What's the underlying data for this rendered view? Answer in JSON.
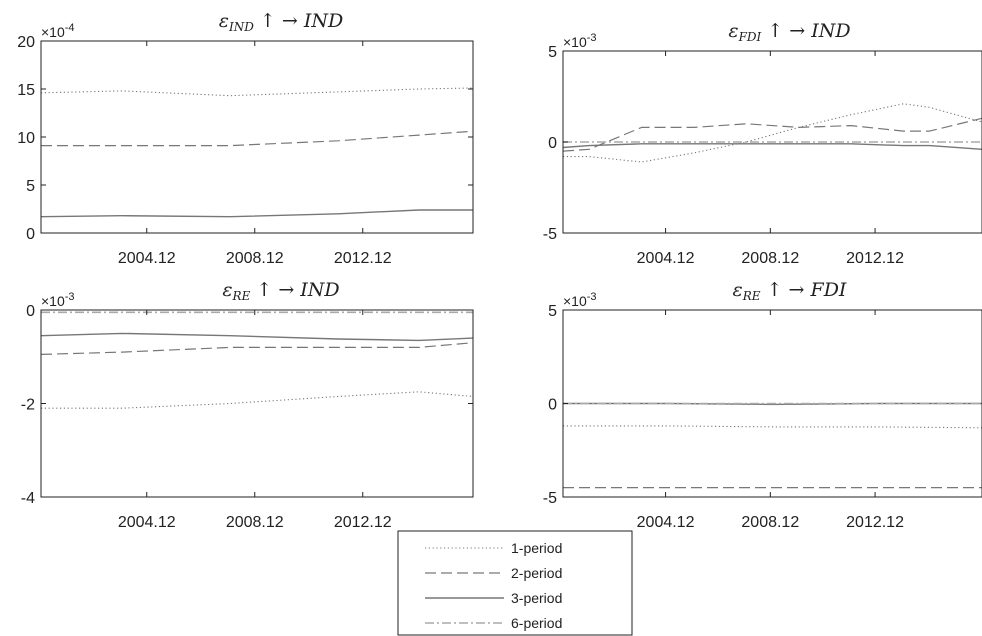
{
  "chart_data": [
    {
      "type": "line",
      "title": "ε_IND ↑ → IND",
      "title_main": "ε",
      "title_sub": "IND",
      "title_rest": " ↑ →  IND",
      "multiplier_base": "×10",
      "multiplier_exp": "-4",
      "ylim": [
        0,
        20
      ],
      "yticks": [
        "0",
        "5",
        "10",
        "15",
        "20"
      ],
      "xlim": [
        2001,
        2017
      ],
      "xticks": [
        2004.917,
        2008.917,
        2012.917
      ],
      "xtick_labels": [
        "2004.12",
        "2008.12",
        "2012.12"
      ],
      "x": [
        2001,
        2004,
        2008,
        2012,
        2015,
        2017
      ],
      "series": [
        {
          "name": "1-period",
          "style": "dotted",
          "values": [
            14.6,
            14.8,
            14.3,
            14.7,
            15.0,
            15.1
          ]
        },
        {
          "name": "2-period",
          "style": "dashed",
          "values": [
            9.1,
            9.1,
            9.1,
            9.6,
            10.2,
            10.6
          ]
        },
        {
          "name": "3-period",
          "style": "solid",
          "values": [
            1.7,
            1.8,
            1.7,
            2.0,
            2.4,
            2.4
          ]
        }
      ]
    },
    {
      "type": "line",
      "title": "ε_FDI ↑ → IND",
      "title_main": "ε",
      "title_sub": "FDI",
      "title_rest": " ↑ →  IND",
      "multiplier_base": "×10",
      "multiplier_exp": "-3",
      "ylim": [
        -5,
        5
      ],
      "yticks": [
        "-5",
        "0",
        "5"
      ],
      "xlim": [
        2001,
        2017
      ],
      "xticks": [
        2004.917,
        2008.917,
        2012.917
      ],
      "xtick_labels": [
        "2004.12",
        "2008.12",
        "2012.12"
      ],
      "x": [
        2001,
        2002,
        2004,
        2006,
        2008,
        2010,
        2012,
        2014,
        2015,
        2017
      ],
      "series": [
        {
          "name": "1-period",
          "style": "dotted",
          "values": [
            -0.8,
            -0.8,
            -1.1,
            -0.6,
            0.0,
            0.8,
            1.5,
            2.1,
            1.9,
            1.1
          ]
        },
        {
          "name": "2-period",
          "style": "dashed",
          "values": [
            -0.5,
            -0.4,
            0.8,
            0.8,
            1.0,
            0.8,
            0.9,
            0.6,
            0.6,
            1.3
          ]
        },
        {
          "name": "3-period",
          "style": "solid",
          "values": [
            -0.3,
            -0.2,
            -0.1,
            -0.1,
            -0.1,
            -0.1,
            -0.1,
            -0.2,
            -0.2,
            -0.4
          ]
        },
        {
          "name": "6-period",
          "style": "dashdot",
          "values": [
            0.0,
            0.0,
            0.0,
            0.0,
            0.0,
            0.0,
            0.0,
            0.0,
            0.0,
            0.0
          ]
        }
      ]
    },
    {
      "type": "line",
      "title": "ε_RE ↑ → IND",
      "title_main": "ε",
      "title_sub": "RE",
      "title_rest": " ↑ →  IND",
      "multiplier_base": "×10",
      "multiplier_exp": "-3",
      "ylim": [
        -4,
        0
      ],
      "yticks": [
        "-4",
        "-2",
        "0"
      ],
      "xlim": [
        2001,
        2017
      ],
      "xticks": [
        2004.917,
        2008.917,
        2012.917
      ],
      "xtick_labels": [
        "2004.12",
        "2008.12",
        "2012.12"
      ],
      "x": [
        2001,
        2004,
        2008,
        2012,
        2015,
        2017
      ],
      "series": [
        {
          "name": "1-period",
          "style": "dotted",
          "values": [
            -2.1,
            -2.1,
            -2.0,
            -1.85,
            -1.75,
            -1.85
          ]
        },
        {
          "name": "2-period",
          "style": "dashed",
          "values": [
            -0.95,
            -0.9,
            -0.8,
            -0.8,
            -0.8,
            -0.7
          ]
        },
        {
          "name": "3-period",
          "style": "solid",
          "values": [
            -0.55,
            -0.5,
            -0.55,
            -0.62,
            -0.65,
            -0.6
          ]
        },
        {
          "name": "6-period",
          "style": "dashdot",
          "values": [
            -0.05,
            -0.05,
            -0.05,
            -0.05,
            -0.05,
            -0.05
          ]
        }
      ]
    },
    {
      "type": "line",
      "title": "ε_RE ↑ → FDI",
      "title_main": "ε",
      "title_sub": "RE",
      "title_rest": " ↑ →  FDI",
      "multiplier_base": "×10",
      "multiplier_exp": "-3",
      "ylim": [
        -5,
        5
      ],
      "yticks": [
        "-5",
        "0",
        "5"
      ],
      "xlim": [
        2001,
        2017
      ],
      "xticks": [
        2004.917,
        2008.917,
        2012.917
      ],
      "xtick_labels": [
        "2004.12",
        "2008.12",
        "2012.12"
      ],
      "x": [
        2001,
        2005,
        2009,
        2013,
        2017
      ],
      "series": [
        {
          "name": "1-period",
          "style": "dotted",
          "values": [
            -1.2,
            -1.2,
            -1.25,
            -1.25,
            -1.3
          ]
        },
        {
          "name": "2-period",
          "style": "dashed",
          "values": [
            -4.5,
            -4.5,
            -4.5,
            -4.5,
            -4.5
          ]
        },
        {
          "name": "3-period",
          "style": "solid",
          "values": [
            0.0,
            0.0,
            -0.05,
            0.0,
            0.0
          ]
        },
        {
          "name": "6-period",
          "style": "dashdot",
          "values": [
            0.0,
            0.0,
            0.0,
            0.0,
            0.0
          ]
        }
      ]
    }
  ],
  "legend": {
    "placement": "bottom-center",
    "items": [
      {
        "label": "1-period",
        "style": "dotted"
      },
      {
        "label": "2-period",
        "style": "dashed"
      },
      {
        "label": "3-period",
        "style": "solid"
      },
      {
        "label": "6-period",
        "style": "dashdot"
      }
    ]
  },
  "colors": {
    "lines": "#777777",
    "axes": "#222222",
    "dashdot": "#aaaaaa"
  }
}
